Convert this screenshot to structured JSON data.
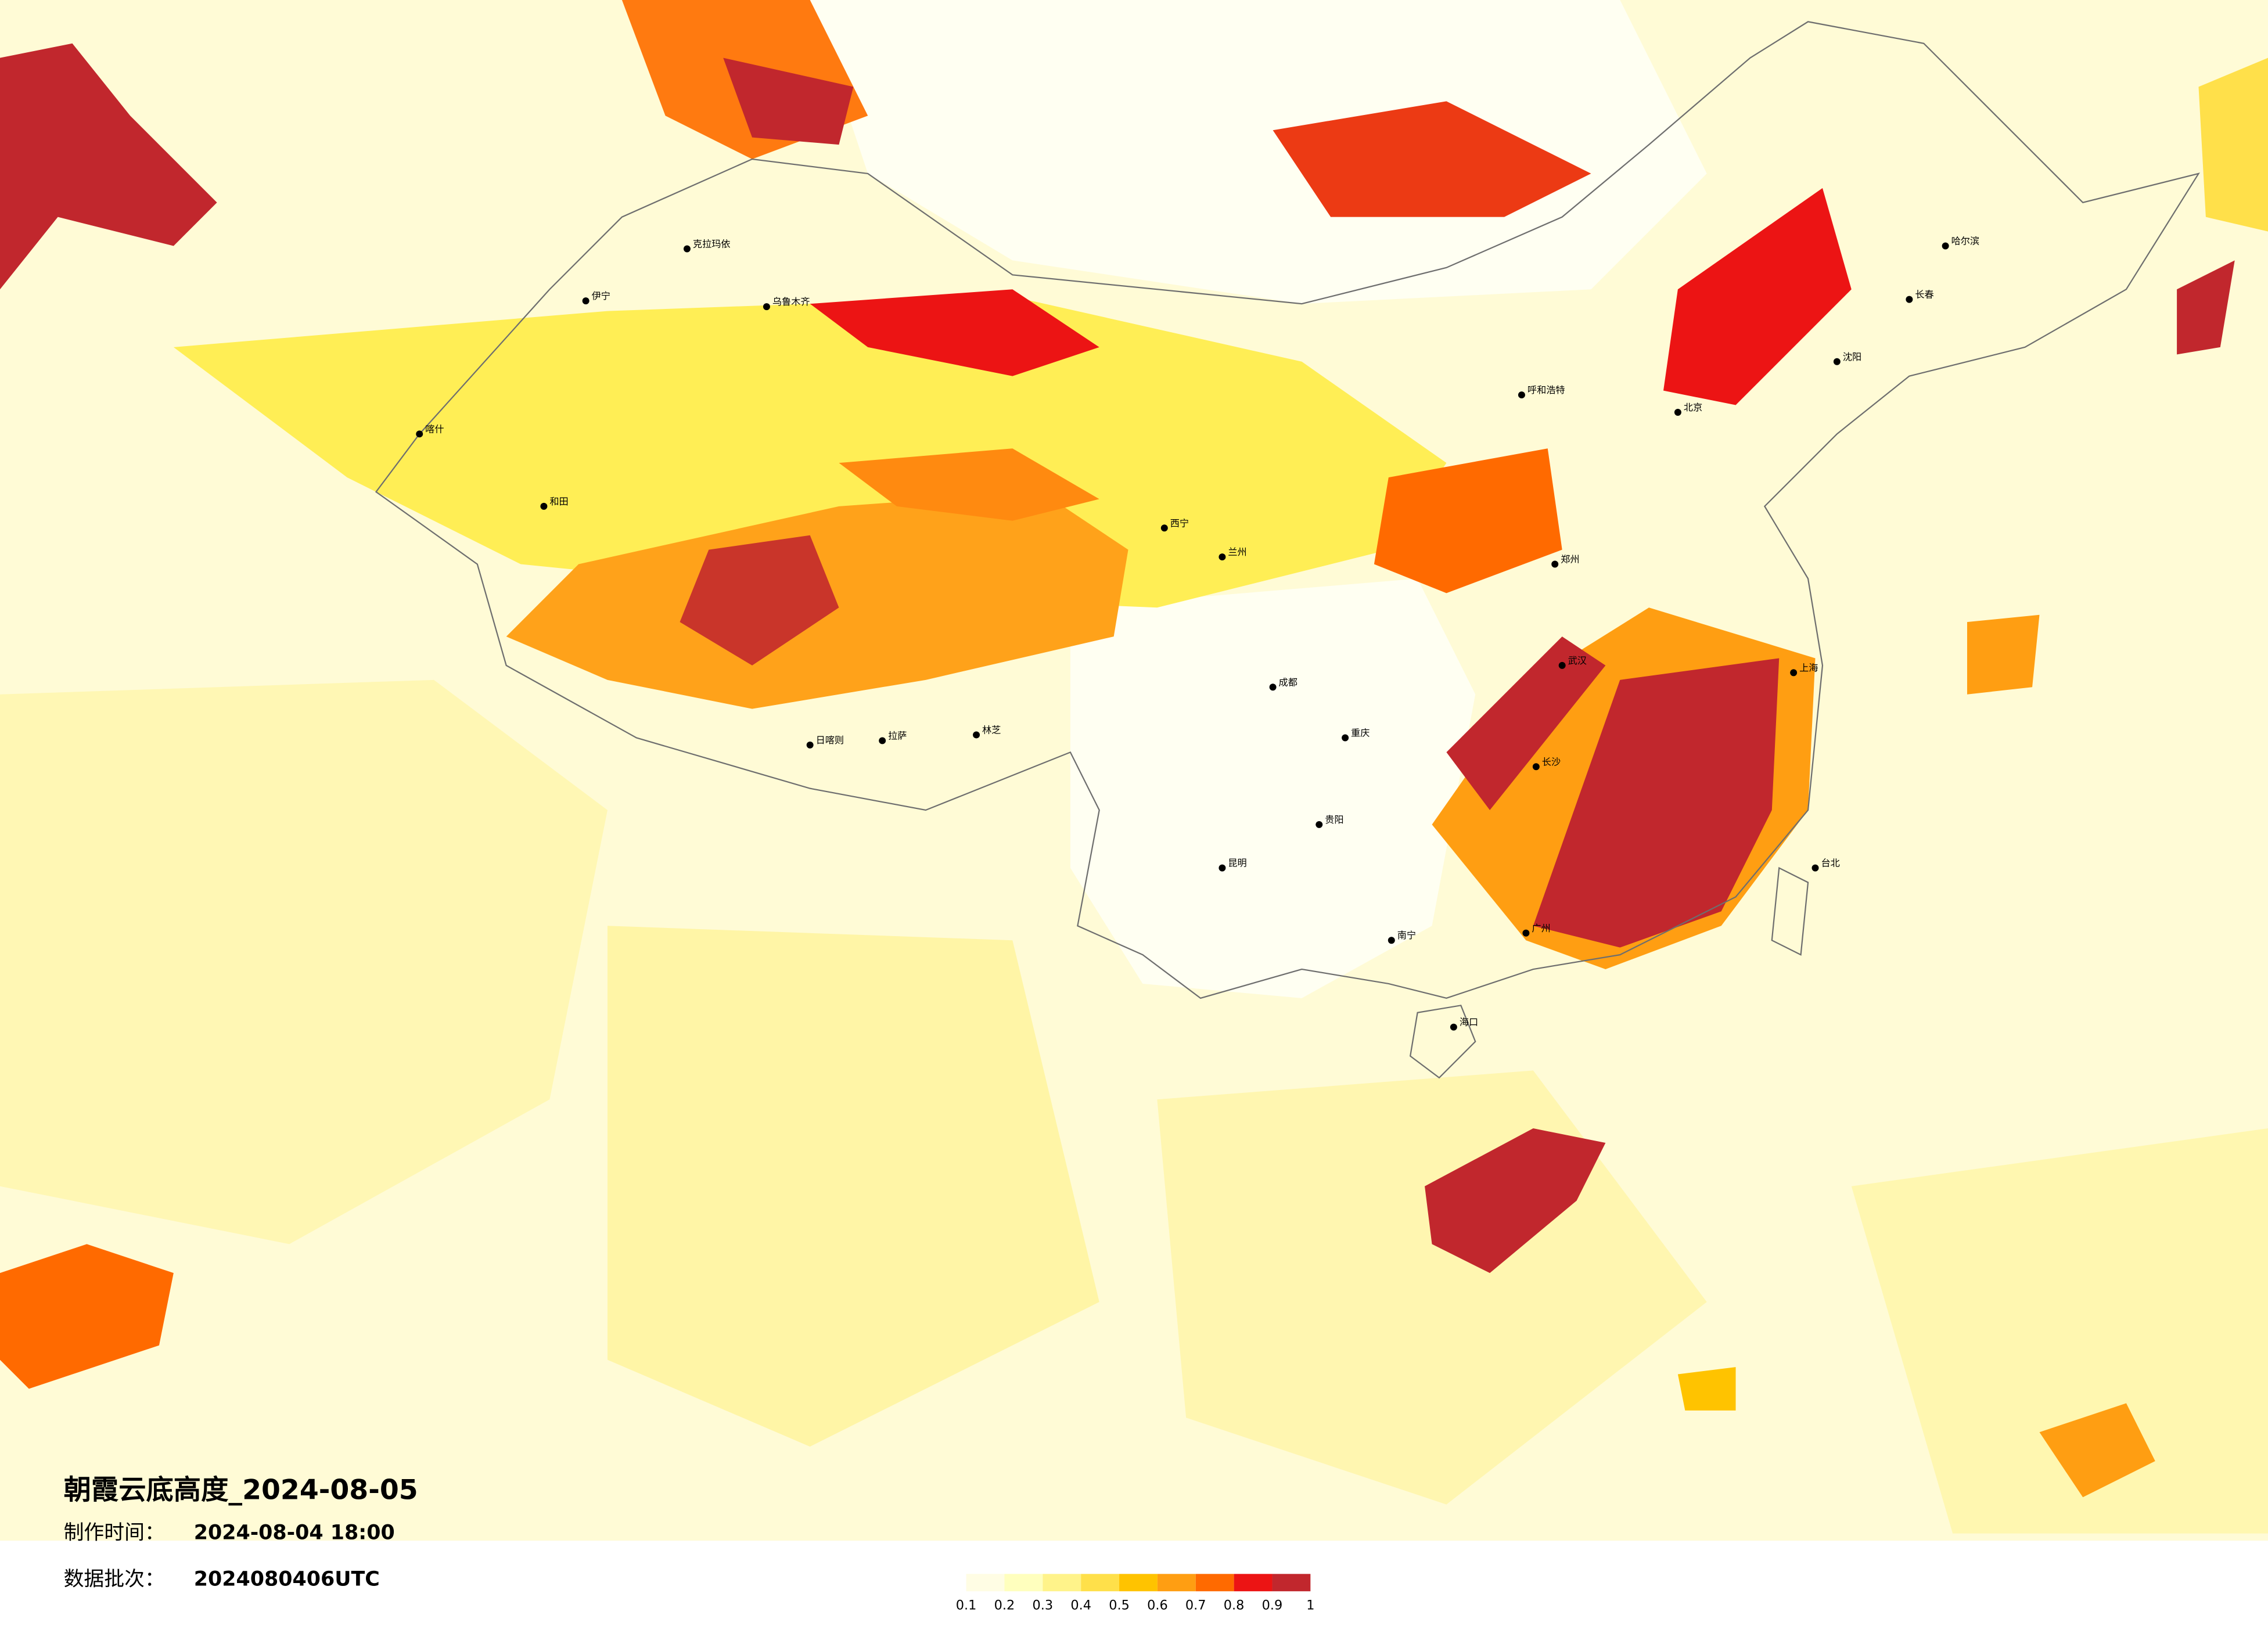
{
  "title": "朝霞云底高度_2024-08-05",
  "made": {
    "label": "制作时间：",
    "value": "2024-08-04 18:00"
  },
  "batch": {
    "label": "数据批次：",
    "value": "2024080406UTC"
  },
  "legend": {
    "ticks": [
      0.1,
      0.2,
      0.3,
      0.4,
      0.5,
      0.6,
      0.7,
      0.8,
      0.9,
      1
    ],
    "colors": [
      "#fffde4",
      "#ffffbe",
      "#fff38a",
      "#ffe04a",
      "#ffc300",
      "#ff9e12",
      "#ff6a00",
      "#ec1414",
      "#c1272d"
    ]
  },
  "cities": [
    "克拉玛依",
    "乌鲁木齐",
    "伊宁",
    "喀什",
    "和田",
    "日喀则",
    "拉萨",
    "林芝",
    "西宁",
    "兰州",
    "成都",
    "重庆",
    "昆明",
    "贵阳",
    "南宁",
    "广州",
    "长沙",
    "武汉",
    "郑州",
    "北京",
    "上海",
    "沈阳",
    "长春",
    "哈尔滨",
    "呼和浩特",
    "海口",
    "台北"
  ]
}
